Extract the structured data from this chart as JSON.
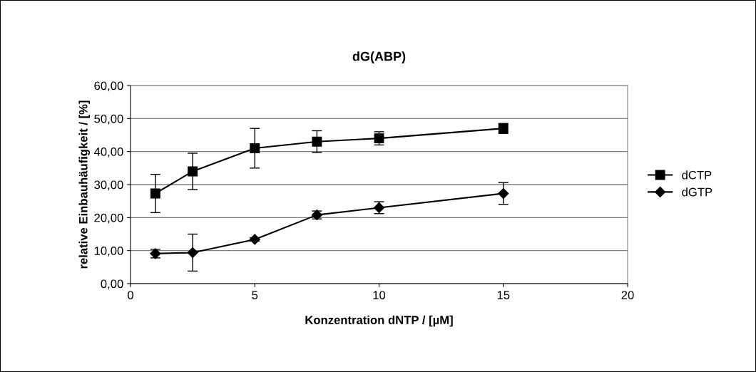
{
  "chart_data": {
    "type": "line",
    "title": "dG(ABP)",
    "xlabel": "Konzentration dNTP / [µM]",
    "ylabel": "relative Einbauhäufigkeit / [%]",
    "x": [
      1,
      2.5,
      5,
      7.5,
      10,
      15
    ],
    "series": [
      {
        "name": "dCTP",
        "color": "#000000",
        "marker": "square",
        "values": [
          27.3,
          34,
          41,
          43,
          44,
          47
        ],
        "errors": [
          5.8,
          5.5,
          6,
          3.3,
          2,
          1.5
        ]
      },
      {
        "name": "dGTP",
        "color": "#000000",
        "marker": "diamond",
        "values": [
          9.1,
          9.4,
          13.4,
          20.8,
          23,
          27.3
        ],
        "errors": [
          1.3,
          5.6,
          0.5,
          1.2,
          1.8,
          3.3
        ]
      }
    ],
    "xlim": [
      0,
      20
    ],
    "xticks": [
      0,
      5,
      10,
      15,
      20
    ],
    "ylim": [
      0,
      60
    ],
    "yticks": [
      {
        "value": 0,
        "label": "0,00"
      },
      {
        "value": 10,
        "label": "10,00"
      },
      {
        "value": 20,
        "label": "20,00"
      },
      {
        "value": 30,
        "label": "30,00"
      },
      {
        "value": 40,
        "label": "40,00"
      },
      {
        "value": 50,
        "label": "50,00"
      },
      {
        "value": 60,
        "label": "60,00"
      }
    ],
    "grid": "y",
    "legend": "right",
    "line_style": "solid"
  }
}
